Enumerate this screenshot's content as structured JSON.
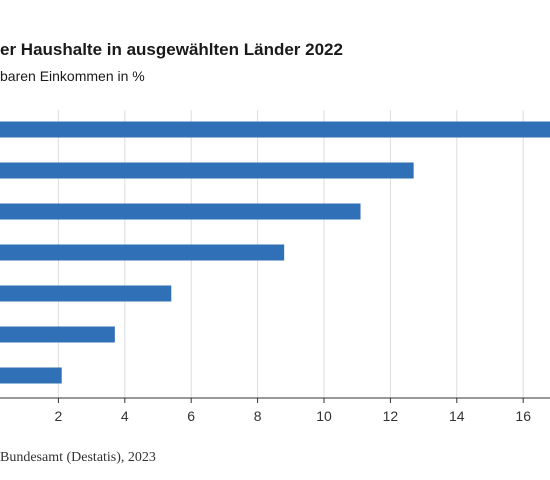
{
  "chart_data": {
    "type": "bar",
    "orientation": "horizontal",
    "title": "er Haushalte in ausgewählten Länder 2022",
    "subtitle": "baren Einkommen in %",
    "values": [
      17.0,
      12.7,
      11.1,
      8.8,
      5.4,
      3.7,
      2.1
    ],
    "xticks": [
      2,
      4,
      6,
      8,
      10,
      12,
      14,
      16
    ],
    "xlim": [
      0,
      16.9
    ],
    "grid": true,
    "color": "#3070b6",
    "source": "Bundesamt (Destatis), 2023"
  }
}
